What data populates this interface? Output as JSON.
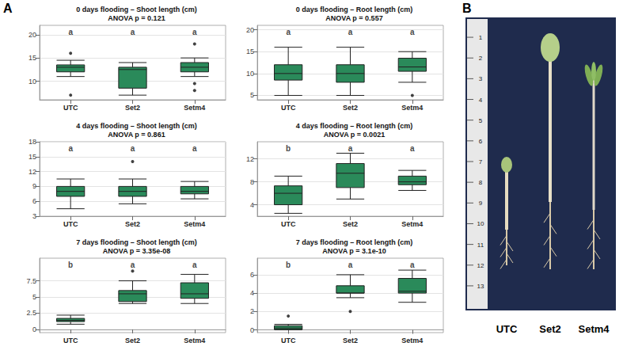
{
  "chart_data": [
    {
      "type": "boxplot",
      "title": "0 days flooding – Shoot length (cm)",
      "subtitle": "ANOVA p = 0.121",
      "categories": [
        "UTC",
        "Set2",
        "Setm4"
      ],
      "boxes": [
        [
          11,
          12,
          13,
          13.5,
          14.5
        ],
        [
          7,
          8.5,
          12.5,
          13,
          14
        ],
        [
          11,
          12,
          13,
          14,
          15
        ]
      ],
      "outliers": [
        [
          7,
          16
        ],
        [],
        [
          8,
          9.5,
          18
        ]
      ],
      "letters": [
        "a",
        "a",
        "a"
      ],
      "color": "#2a8a5a",
      "ylim": [
        6,
        22
      ],
      "yticks": [
        10,
        15,
        20
      ],
      "grid": true
    },
    {
      "type": "boxplot",
      "title": "0 days flooding – Root length (cm)",
      "subtitle": "ANOVA p = 0.557",
      "categories": [
        "UTC",
        "Set2",
        "Setm4"
      ],
      "boxes": [
        [
          5,
          8.5,
          10,
          12,
          16
        ],
        [
          5,
          8,
          10,
          12,
          16
        ],
        [
          8,
          10.5,
          11.5,
          13.5,
          15
        ]
      ],
      "outliers": [
        [],
        [],
        [
          5
        ]
      ],
      "letters": [
        "a",
        "a",
        "a"
      ],
      "color": "#2a8a5a",
      "ylim": [
        4,
        21
      ],
      "yticks": [
        5,
        10,
        15,
        20
      ],
      "grid": true
    },
    {
      "type": "boxplot",
      "title": "4 days flooding – Shoot length (cm)",
      "subtitle": "ANOVA p = 0.861",
      "categories": [
        "UTC",
        "Set2",
        "Setm4"
      ],
      "boxes": [
        [
          4.5,
          7,
          8,
          9,
          10.5
        ],
        [
          5.5,
          7,
          8,
          9,
          10.5
        ],
        [
          6.5,
          7.5,
          8,
          9,
          10
        ]
      ],
      "outliers": [
        [],
        [
          14
        ],
        []
      ],
      "letters": [
        "a",
        "a",
        "a"
      ],
      "color": "#2a8a5a",
      "ylim": [
        3,
        18
      ],
      "yticks": [
        3,
        6,
        9,
        12,
        15,
        18
      ],
      "grid": true
    },
    {
      "type": "boxplot",
      "title": "4 days flooding – Root length (cm)",
      "subtitle": "ANOVA p = 0.0021",
      "categories": [
        "UTC",
        "Set2",
        "Setm4"
      ],
      "boxes": [
        [
          2.5,
          4,
          6,
          7.3,
          9
        ],
        [
          5,
          7,
          9.5,
          11.2,
          13
        ],
        [
          6.5,
          7.5,
          8,
          9,
          10
        ]
      ],
      "outliers": [
        [],
        [],
        []
      ],
      "letters": [
        "b",
        "a",
        "a"
      ],
      "color": "#2a8a5a",
      "ylim": [
        2,
        15
      ],
      "yticks": [
        4,
        8,
        12
      ],
      "grid": true
    },
    {
      "type": "boxplot",
      "title": "7 days flooding – Shoot length (cm)",
      "subtitle": "ANOVA p = 3.35e-08",
      "categories": [
        "UTC",
        "Set2",
        "Setm4"
      ],
      "boxes": [
        [
          0.8,
          1.2,
          1.4,
          1.7,
          2.2
        ],
        [
          4,
          4.3,
          5.5,
          6,
          7.5
        ],
        [
          4,
          4.8,
          5.5,
          7.2,
          8.5
        ]
      ],
      "outliers": [
        [],
        [
          9
        ],
        []
      ],
      "letters": [
        "b",
        "a",
        "a"
      ],
      "color": "#2a8a5a",
      "ylim": [
        -0.5,
        11
      ],
      "yticks": [
        0,
        2.5,
        5,
        7.5
      ],
      "grid": true
    },
    {
      "type": "boxplot",
      "title": "7 days flooding – Root length (cm)",
      "subtitle": "ANOVA p = 3.1e-10",
      "categories": [
        "UTC",
        "Set2",
        "Setm4"
      ],
      "boxes": [
        [
          0,
          0.05,
          0.2,
          0.45,
          0.6
        ],
        [
          3.5,
          4,
          4,
          4.8,
          6
        ],
        [
          3,
          4,
          4.2,
          5.6,
          6.5
        ]
      ],
      "outliers": [
        [
          1.5
        ],
        [
          2
        ],
        []
      ],
      "letters": [
        "b",
        "a",
        "a"
      ],
      "color": "#2a8a5a",
      "ylim": [
        -0.3,
        7.8
      ],
      "yticks": [
        0,
        2,
        4,
        6
      ],
      "grid": true
    }
  ],
  "panel_labels": [
    "A",
    "B"
  ],
  "photo": {
    "labels": [
      "UTC",
      "Set2",
      "Setm4"
    ],
    "ruler_ticks": [
      1,
      2,
      3,
      4,
      5,
      6,
      7,
      8,
      9,
      10,
      11,
      12,
      13
    ]
  }
}
